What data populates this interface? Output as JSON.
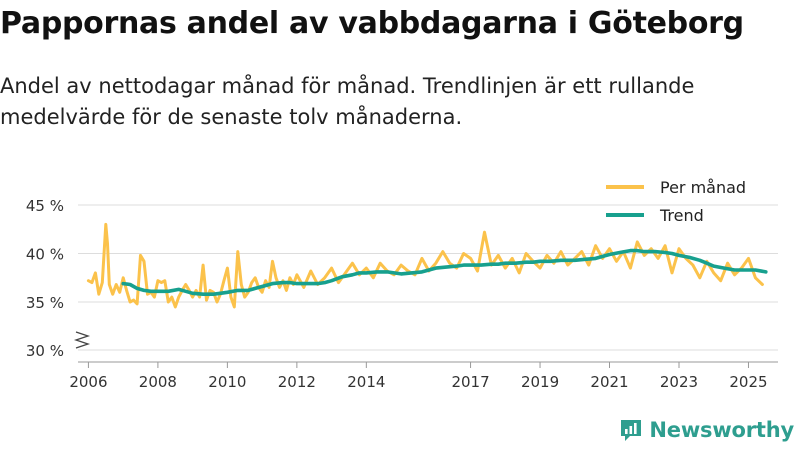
{
  "title": "Pappornas andel av vabbdagarna i Göteborg",
  "subtitle": "Andel av nettodagar månad för månad. Trendlinjen är ett rullande medelvärde för de senaste tolv månaderna.",
  "brand": "Newsworthy",
  "colors": {
    "per_month": "#fbc24b",
    "trend": "#17a08e",
    "grid": "#dddddd",
    "axis_text": "#333333",
    "brand": "#2e9e8f"
  },
  "chart_data": {
    "type": "line",
    "title": "Pappornas andel av vabbdagarna i Göteborg",
    "xlabel": "",
    "ylabel": "",
    "xlim": [
      2005.7,
      2025.85
    ],
    "ylim": [
      30,
      46
    ],
    "y_ticks": [
      30,
      35,
      40,
      45
    ],
    "y_tick_labels": [
      "30 %",
      "35 %",
      "40 %",
      "45 %"
    ],
    "x_ticks": [
      2006,
      2008,
      2010,
      2012,
      2014,
      2017,
      2019,
      2021,
      2023,
      2025
    ],
    "x_tick_labels": [
      "2006",
      "2008",
      "2010",
      "2012",
      "2014",
      "2017",
      "2019",
      "2021",
      "2023",
      "2025"
    ],
    "y_axis_break": true,
    "legend": {
      "position": "top-right",
      "labels": [
        "Per månad",
        "Trend"
      ]
    },
    "series": [
      {
        "name": "Per månad",
        "x": [
          2006.0,
          2006.1,
          2006.2,
          2006.3,
          2006.4,
          2006.5,
          2006.55,
          2006.6,
          2006.7,
          2006.8,
          2006.9,
          2007.0,
          2007.1,
          2007.2,
          2007.3,
          2007.4,
          2007.5,
          2007.6,
          2007.7,
          2007.8,
          2007.9,
          2008.0,
          2008.1,
          2008.2,
          2008.3,
          2008.4,
          2008.5,
          2008.6,
          2008.7,
          2008.8,
          2008.9,
          2009.0,
          2009.1,
          2009.2,
          2009.3,
          2009.4,
          2009.5,
          2009.6,
          2009.7,
          2009.8,
          2009.9,
          2010.0,
          2010.1,
          2010.2,
          2010.3,
          2010.4,
          2010.5,
          2010.6,
          2010.7,
          2010.8,
          2010.9,
          2011.0,
          2011.1,
          2011.2,
          2011.3,
          2011.4,
          2011.5,
          2011.6,
          2011.7,
          2011.8,
          2011.9,
          2012.0,
          2012.2,
          2012.4,
          2012.6,
          2012.8,
          2013.0,
          2013.2,
          2013.4,
          2013.6,
          2013.8,
          2014.0,
          2014.2,
          2014.4,
          2014.6,
          2014.8,
          2015.0,
          2015.2,
          2015.4,
          2015.6,
          2015.8,
          2016.0,
          2016.2,
          2016.4,
          2016.6,
          2016.8,
          2017.0,
          2017.2,
          2017.4,
          2017.6,
          2017.8,
          2018.0,
          2018.2,
          2018.4,
          2018.6,
          2018.8,
          2019.0,
          2019.2,
          2019.4,
          2019.6,
          2019.8,
          2020.0,
          2020.2,
          2020.4,
          2020.6,
          2020.8,
          2021.0,
          2021.2,
          2021.4,
          2021.6,
          2021.8,
          2022.0,
          2022.2,
          2022.4,
          2022.6,
          2022.8,
          2023.0,
          2023.2,
          2023.4,
          2023.6,
          2023.8,
          2024.0,
          2024.2,
          2024.4,
          2024.6,
          2024.8,
          2025.0,
          2025.2,
          2025.4
        ],
        "values": [
          37.2,
          37.0,
          38.0,
          35.8,
          37.0,
          43.0,
          41.0,
          36.8,
          35.8,
          36.8,
          36.0,
          37.5,
          36.2,
          35.0,
          35.2,
          34.8,
          39.8,
          39.2,
          35.8,
          36.0,
          35.5,
          37.2,
          37.0,
          37.2,
          35.0,
          35.5,
          34.5,
          35.5,
          36.2,
          36.8,
          36.2,
          35.5,
          36.2,
          35.5,
          38.8,
          35.2,
          36.2,
          36.0,
          35.0,
          35.8,
          37.2,
          38.5,
          35.5,
          34.5,
          40.2,
          36.8,
          35.5,
          36.0,
          37.0,
          37.5,
          36.5,
          36.0,
          37.2,
          36.5,
          39.2,
          37.5,
          36.5,
          37.2,
          36.2,
          37.5,
          36.8,
          37.8,
          36.5,
          38.2,
          36.8,
          37.5,
          38.5,
          37.0,
          38.0,
          39.0,
          37.8,
          38.5,
          37.5,
          39.0,
          38.2,
          37.8,
          38.8,
          38.2,
          37.8,
          39.5,
          38.2,
          39.0,
          40.2,
          39.0,
          38.5,
          40.0,
          39.5,
          38.2,
          42.2,
          38.8,
          39.8,
          38.5,
          39.5,
          38.0,
          40.0,
          39.2,
          38.5,
          39.8,
          39.0,
          40.2,
          38.8,
          39.5,
          40.2,
          38.8,
          40.8,
          39.5,
          40.5,
          39.2,
          40.2,
          38.5,
          41.2,
          39.8,
          40.5,
          39.5,
          40.8,
          38.0,
          40.5,
          39.5,
          38.8,
          37.5,
          39.2,
          38.0,
          37.2,
          39.0,
          37.8,
          38.5,
          39.5,
          37.5,
          36.8
        ]
      },
      {
        "name": "Trend",
        "x": [
          2007.0,
          2007.2,
          2007.4,
          2007.6,
          2007.8,
          2008.0,
          2008.3,
          2008.6,
          2008.8,
          2009.0,
          2009.3,
          2009.6,
          2009.8,
          2010.0,
          2010.3,
          2010.6,
          2010.8,
          2011.0,
          2011.3,
          2011.6,
          2011.8,
          2012.0,
          2012.3,
          2012.6,
          2012.8,
          2013.0,
          2013.3,
          2013.6,
          2013.8,
          2014.0,
          2014.3,
          2014.6,
          2014.8,
          2015.0,
          2015.3,
          2015.6,
          2015.8,
          2016.0,
          2016.3,
          2016.6,
          2016.8,
          2017.0,
          2017.3,
          2017.6,
          2017.8,
          2018.0,
          2018.3,
          2018.6,
          2018.8,
          2019.0,
          2019.3,
          2019.6,
          2019.8,
          2020.0,
          2020.3,
          2020.6,
          2020.8,
          2021.0,
          2021.3,
          2021.6,
          2021.8,
          2022.0,
          2022.3,
          2022.6,
          2022.8,
          2023.0,
          2023.3,
          2023.6,
          2023.8,
          2024.0,
          2024.3,
          2024.6,
          2024.8,
          2025.0,
          2025.2,
          2025.5
        ],
        "values": [
          36.9,
          36.8,
          36.4,
          36.2,
          36.1,
          36.1,
          36.1,
          36.3,
          36.1,
          35.9,
          35.8,
          35.8,
          35.9,
          36.0,
          36.2,
          36.2,
          36.4,
          36.6,
          36.9,
          37.0,
          37.0,
          36.9,
          36.9,
          36.9,
          37.0,
          37.2,
          37.6,
          37.8,
          38.0,
          38.0,
          38.1,
          38.1,
          38.0,
          37.9,
          38.0,
          38.1,
          38.3,
          38.5,
          38.6,
          38.7,
          38.8,
          38.8,
          38.8,
          38.9,
          38.9,
          39.0,
          39.0,
          39.1,
          39.1,
          39.2,
          39.2,
          39.3,
          39.3,
          39.3,
          39.4,
          39.5,
          39.7,
          39.9,
          40.1,
          40.3,
          40.3,
          40.2,
          40.2,
          40.1,
          40.0,
          39.8,
          39.6,
          39.3,
          39.0,
          38.7,
          38.5,
          38.3,
          38.3,
          38.3,
          38.3,
          38.1
        ]
      }
    ]
  }
}
